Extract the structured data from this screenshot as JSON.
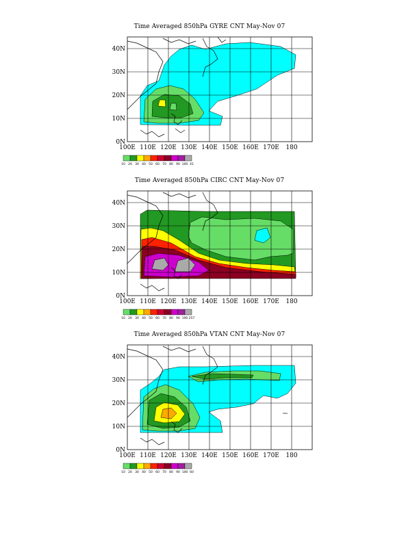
{
  "panels": [
    {
      "title": "Time Averaged 850hPa GYRE CNT May-Nov 07",
      "cb_labels": [
        "10",
        "20",
        "30",
        "40",
        "50",
        "60",
        "70",
        "80",
        "90",
        "100",
        "41"
      ]
    },
    {
      "title": "Time Averaged 850hPa CIRC CNT May-Nov 07",
      "cb_labels": [
        "10",
        "20",
        "30",
        "40",
        "50",
        "60",
        "70",
        "80",
        "90",
        "100",
        "257"
      ]
    },
    {
      "title": "Time Averaged 850hPa VTAN CNT May-Nov 07",
      "cb_labels": [
        "10",
        "20",
        "30",
        "40",
        "50",
        "60",
        "70",
        "80",
        "90",
        "100",
        "60"
      ]
    }
  ],
  "axes": {
    "x_ticks": [
      "100E",
      "110E",
      "120E",
      "130E",
      "140E",
      "150E",
      "160E",
      "170E",
      "180"
    ],
    "y_ticks": [
      "0N",
      "10N",
      "20N",
      "30N",
      "40N"
    ]
  },
  "colors": {
    "c10": "#00ffff",
    "c20": "#66dd66",
    "c30": "#229922",
    "c40": "#ffff00",
    "c50": "#ffaa00",
    "c60": "#ff2200",
    "c70": "#cc0033",
    "c80": "#8b0022",
    "c90": "#cc00cc",
    "c100": "#a020a0",
    "cmax": "#aaaaaa"
  }
}
